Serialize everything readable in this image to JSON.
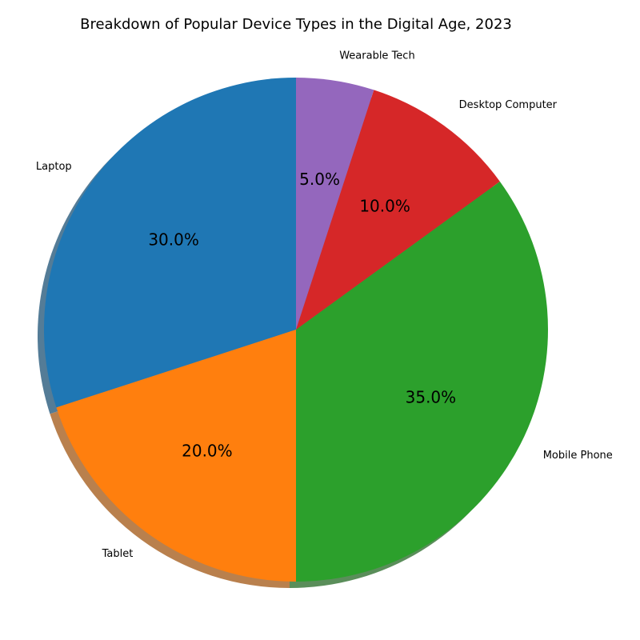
{
  "chart_data": {
    "type": "pie",
    "title": "Breakdown of Popular Device Types in the Digital Age, 2023",
    "categories": [
      "Laptop",
      "Tablet",
      "Mobile Phone",
      "Desktop Computer",
      "Wearable Tech"
    ],
    "values": [
      30,
      20,
      35,
      10,
      5
    ],
    "percent_labels": [
      "30.0%",
      "20.0%",
      "35.0%",
      "10.0%",
      "5.0%"
    ],
    "colors": [
      "#1f77b4",
      "#ff7f0e",
      "#2ca02c",
      "#d62728",
      "#9467bd"
    ],
    "start_angle_deg": 90,
    "direction": "counterclockwise",
    "shadow": true
  }
}
